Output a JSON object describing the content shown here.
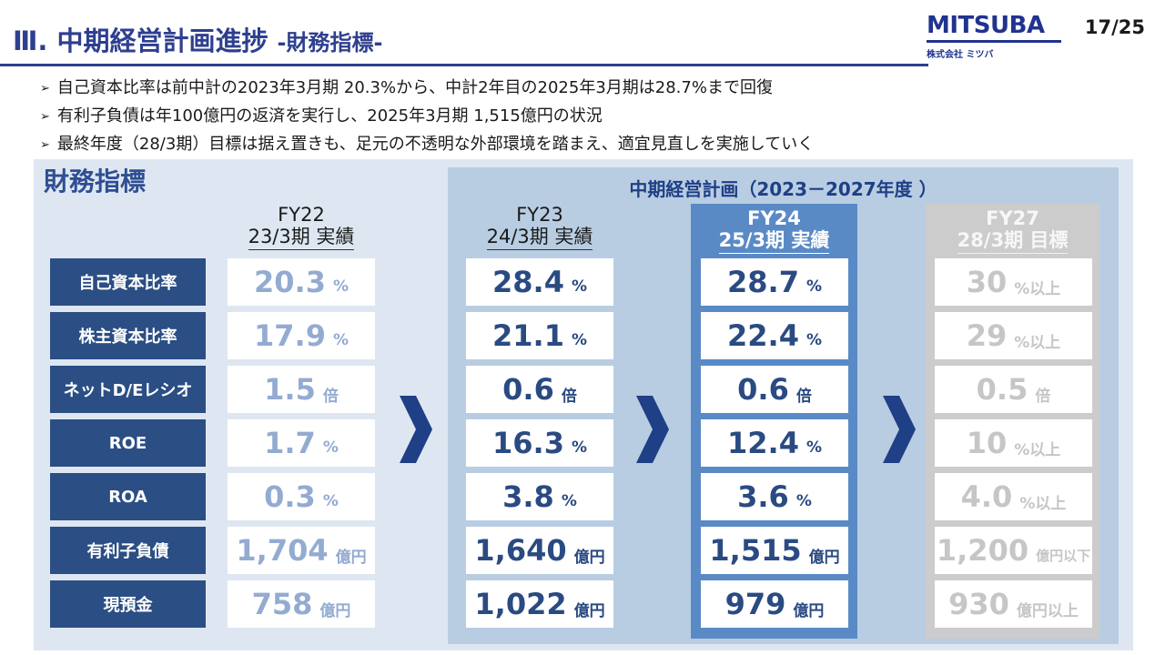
{
  "header": {
    "title": "Ⅲ. 中期経営計画進捗",
    "subtitle": "-財務指標-",
    "page": "17/25",
    "logo_main": "MITSUBA",
    "logo_sub": "株式会社 ミツバ",
    "brand_color": "#20338f"
  },
  "bullets": [
    "自己資本比率は前中計の2023年3月期 20.3%から、中計2年目の2025年3月期は28.7%まで回復",
    "有利子負債は年100億円の返済を実行し、2025年3月期 1,515億円の状況",
    "最終年度（28/3期）目標は据え置きも、足元の不透明な外部環境を踏まえ、適宜見直しを実施していく"
  ],
  "bullet_mark": "➢",
  "panel_title": "財務指標",
  "plan_title": "中期経営計画（2023－2027年度 ）",
  "columns": [
    {
      "fy": "FY22",
      "period": "23/3期 実績"
    },
    {
      "fy": "FY23",
      "period": "24/3期 実績"
    },
    {
      "fy": "FY24",
      "period": "25/3期 実績"
    },
    {
      "fy": "FY27",
      "period": "28/3期 目標"
    }
  ],
  "rows": [
    {
      "label": "自己資本比率",
      "values": [
        {
          "num": "20.3",
          "unit": "%"
        },
        {
          "num": "28.4",
          "unit": "%"
        },
        {
          "num": "28.7",
          "unit": "%"
        },
        {
          "num": "30",
          "unit": "%以上"
        }
      ]
    },
    {
      "label": "株主資本比率",
      "values": [
        {
          "num": "17.9",
          "unit": "%"
        },
        {
          "num": "21.1",
          "unit": "%"
        },
        {
          "num": "22.4",
          "unit": "%"
        },
        {
          "num": "29",
          "unit": "%以上"
        }
      ]
    },
    {
      "label": "ネットD/Eレシオ",
      "values": [
        {
          "num": "1.5",
          "unit": "倍"
        },
        {
          "num": "0.6",
          "unit": "倍"
        },
        {
          "num": "0.6",
          "unit": "倍"
        },
        {
          "num": "0.5",
          "unit": "倍"
        }
      ]
    },
    {
      "label": "ROE",
      "values": [
        {
          "num": "1.7",
          "unit": "%"
        },
        {
          "num": "16.3",
          "unit": "%"
        },
        {
          "num": "12.4",
          "unit": "%"
        },
        {
          "num": "10",
          "unit": "%以上"
        }
      ]
    },
    {
      "label": "ROA",
      "values": [
        {
          "num": "0.3",
          "unit": "%"
        },
        {
          "num": "3.8",
          "unit": "%"
        },
        {
          "num": "3.6",
          "unit": "%"
        },
        {
          "num": "4.0",
          "unit": "%以上"
        }
      ]
    },
    {
      "label": "有利子負債",
      "values": [
        {
          "num": "1,704",
          "unit": "億円"
        },
        {
          "num": "1,640",
          "unit": "億円"
        },
        {
          "num": "1,515",
          "unit": "億円"
        },
        {
          "num": "1,200",
          "unit": "億円以下"
        }
      ]
    },
    {
      "label": "現預金",
      "values": [
        {
          "num": "758",
          "unit": "億円"
        },
        {
          "num": "1,022",
          "unit": "億円"
        },
        {
          "num": "979",
          "unit": "億円"
        },
        {
          "num": "930",
          "unit": "億円以上"
        }
      ]
    }
  ],
  "colors": {
    "navy": "#2b4e84",
    "fy22_text": "#94abd1",
    "fy24_highlight": "#5a8ac6",
    "fy27_text": "#c6c6c6",
    "plan_bg": "#b8cde2",
    "panel_bg": "#dee7f1"
  },
  "arrow_icon": "chevron-right-icon"
}
